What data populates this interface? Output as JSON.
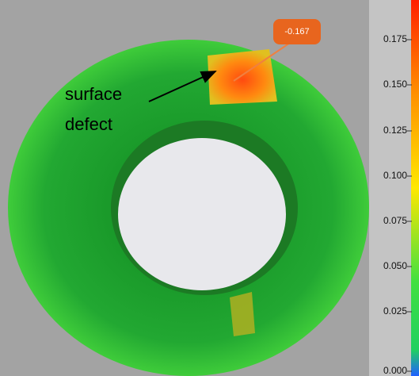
{
  "annotation": {
    "lines": [
      "surface",
      "defect"
    ]
  },
  "callout": {
    "label": "-0.167"
  },
  "colorbar": {
    "ticks": [
      "0.175",
      "0.150",
      "0.125",
      "0.100",
      "0.075",
      "0.050",
      "0.025",
      "0.000"
    ]
  }
}
